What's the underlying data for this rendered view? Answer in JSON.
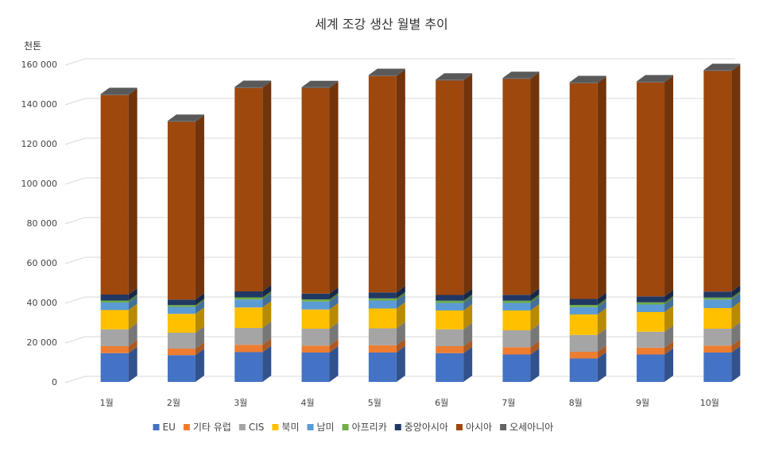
{
  "chart_data": {
    "type": "bar",
    "stacked": true,
    "style": "3d-column",
    "title": "세계 조강 생산 월별 추이",
    "unit_label": "천톤",
    "categories": [
      "1월",
      "2월",
      "3월",
      "4월",
      "5월",
      "6월",
      "7월",
      "8월",
      "9월",
      "10월"
    ],
    "ylim": [
      0,
      160000
    ],
    "yticks": [
      0,
      20000,
      40000,
      60000,
      80000,
      100000,
      120000,
      140000,
      160000
    ],
    "ytick_labels": [
      "0",
      "20 000",
      "40 000",
      "60 000",
      "80 000",
      "100 000",
      "120 000",
      "140 000",
      "160 000"
    ],
    "grid": true,
    "legend_position": "bottom",
    "series": [
      {
        "name": "EU",
        "color": "#4472C4",
        "values": [
          14500,
          13500,
          15000,
          14800,
          14800,
          14500,
          13800,
          11800,
          13800,
          14800
        ]
      },
      {
        "name": "기타 유럽",
        "color": "#ED7D31",
        "values": [
          3500,
          3300,
          3700,
          3500,
          3700,
          3500,
          3700,
          3400,
          3500,
          3500
        ]
      },
      {
        "name": "CIS",
        "color": "#A5A5A5",
        "values": [
          8500,
          8000,
          8500,
          8500,
          8500,
          8500,
          8500,
          8500,
          8000,
          8500
        ]
      },
      {
        "name": "북미",
        "color": "#FFC000",
        "values": [
          9700,
          9500,
          10300,
          9700,
          10000,
          9500,
          10000,
          10300,
          9900,
          10400
        ]
      },
      {
        "name": "남미",
        "color": "#5B9BD5",
        "values": [
          3800,
          3500,
          4000,
          4000,
          4000,
          3800,
          3800,
          3700,
          3800,
          4300
        ]
      },
      {
        "name": "아프리카",
        "color": "#70AD47",
        "values": [
          1000,
          900,
          1100,
          1100,
          1100,
          1100,
          1100,
          1100,
          1100,
          1000
        ]
      },
      {
        "name": "중앙아시아",
        "color": "#203864",
        "values": [
          3000,
          2800,
          3000,
          2900,
          3000,
          2900,
          3000,
          3000,
          3000,
          3000
        ]
      },
      {
        "name": "아시아",
        "color": "#9E480E",
        "values": [
          100500,
          89500,
          102500,
          103500,
          109000,
          108000,
          108700,
          108700,
          107800,
          111100
        ]
      },
      {
        "name": "오세아니아",
        "color": "#636363",
        "values": [
          500,
          500,
          500,
          500,
          500,
          500,
          500,
          500,
          500,
          500
        ]
      }
    ]
  }
}
